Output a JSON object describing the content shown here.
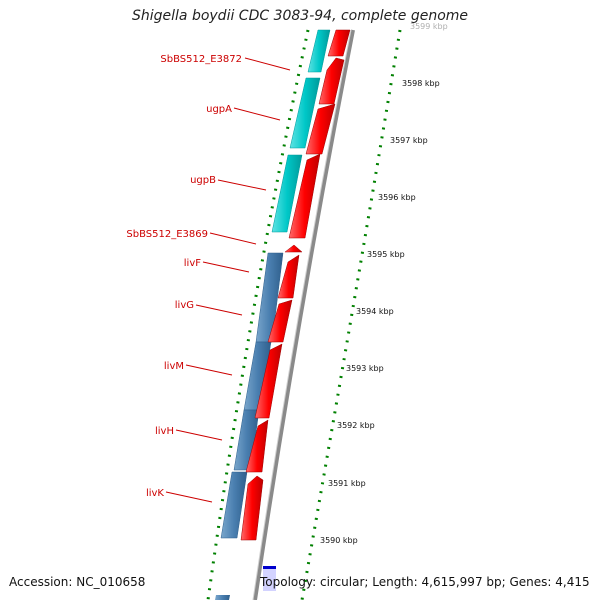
{
  "title": "Shigella boydii CDC 3083-94, complete genome",
  "footer": {
    "accession": "Accession: NC_010658",
    "topology": "Topology: circular; Length: 4,615,997 bp; Genes: 4,415"
  },
  "colors": {
    "cds_reverse": "#00c8c8",
    "cds_reverse_alt": "#4682b4",
    "cds_forward": "#ff0000",
    "backbone": "#808080",
    "ruler_dots": "#008000",
    "label": "#cc0000"
  },
  "gene_labels": [
    "SbBS512_E3872",
    "ugpA",
    "ugpB",
    "SbBS512_E3869",
    "livF",
    "livG",
    "livM",
    "livH",
    "livK"
  ],
  "ruler": {
    "unit": "kbp",
    "ticks": [
      "3599 kbp",
      "3598 kbp",
      "3597 kbp",
      "3596 kbp",
      "3595 kbp",
      "3594 kbp",
      "3593 kbp",
      "3592 kbp",
      "3591 kbp",
      "3590 kbp"
    ]
  },
  "reverse_strand_genes": [
    {
      "name": "SbBS512_E3872",
      "color": "cyan"
    },
    {
      "name": "ugpA",
      "color": "cyan"
    },
    {
      "name": "ugpB",
      "color": "cyan"
    },
    {
      "name": "livF",
      "color": "steelblue"
    },
    {
      "name": "livG",
      "color": "steelblue"
    },
    {
      "name": "livM",
      "color": "steelblue"
    },
    {
      "name": "livH",
      "color": "steelblue"
    },
    {
      "name": "livK",
      "color": "steelblue"
    }
  ]
}
